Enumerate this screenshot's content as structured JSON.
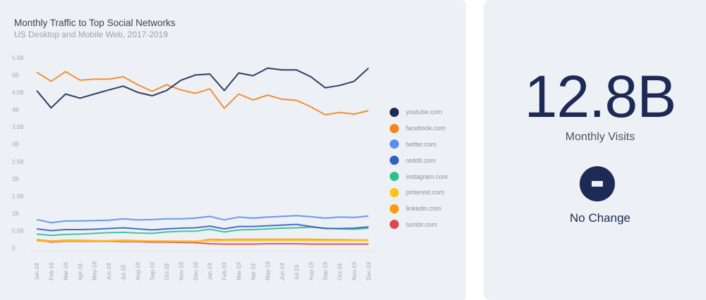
{
  "chart_data": {
    "type": "line",
    "title": "Monthly Traffic to Top Social Networks",
    "subtitle": "US Desktop and Mobile Web, 2017-2019",
    "xlabel": "",
    "ylabel": "",
    "ylim": [
      0,
      5.5
    ],
    "grid": false,
    "legend_position": "right",
    "y_ticks": [
      {
        "value": 0,
        "label": "0"
      },
      {
        "value": 0.5,
        "label": "0.5B"
      },
      {
        "value": 1,
        "label": "1B"
      },
      {
        "value": 1.5,
        "label": "1.5B"
      },
      {
        "value": 2,
        "label": "2B"
      },
      {
        "value": 2.5,
        "label": "2.5B"
      },
      {
        "value": 3,
        "label": "3B"
      },
      {
        "value": 3.5,
        "label": "3.5B"
      },
      {
        "value": 4,
        "label": "4B"
      },
      {
        "value": 4.5,
        "label": "4.5B"
      },
      {
        "value": 5,
        "label": "5B"
      },
      {
        "value": 5.5,
        "label": "5.5B"
      }
    ],
    "categories": [
      "Jan-18",
      "Feb-18",
      "Mar-18",
      "Apr-18",
      "May-18",
      "Jun-18",
      "Jul-18",
      "Aug-18",
      "Sep-18",
      "Oct-18",
      "Nov-18",
      "Dec-18",
      "Jan-19",
      "Feb-19",
      "Mar-19",
      "Apr-19",
      "May-19",
      "Jun-19",
      "Jul-19",
      "Aug-19",
      "Sep-19",
      "Oct-19",
      "Nov-19",
      "Dec-19"
    ],
    "series": [
      {
        "name": "youtube.com",
        "color": "#1c2a55",
        "values": [
          4.55,
          4.05,
          4.45,
          4.33,
          4.45,
          4.57,
          4.68,
          4.5,
          4.4,
          4.55,
          4.85,
          5.0,
          5.03,
          4.55,
          5.06,
          4.98,
          5.2,
          5.15,
          5.15,
          4.95,
          4.63,
          4.7,
          4.82,
          5.2
        ]
      },
      {
        "name": "facebook.com",
        "color": "#f5841f",
        "values": [
          5.08,
          4.82,
          5.1,
          4.85,
          4.88,
          4.88,
          4.95,
          4.72,
          4.53,
          4.72,
          4.57,
          4.47,
          4.6,
          4.04,
          4.45,
          4.28,
          4.42,
          4.3,
          4.27,
          4.08,
          3.85,
          3.92,
          3.87,
          3.97
        ]
      },
      {
        "name": "twitter.com",
        "color": "#5b8def",
        "values": [
          0.82,
          0.73,
          0.78,
          0.78,
          0.79,
          0.8,
          0.84,
          0.81,
          0.82,
          0.84,
          0.84,
          0.86,
          0.91,
          0.81,
          0.89,
          0.86,
          0.89,
          0.91,
          0.93,
          0.9,
          0.86,
          0.89,
          0.88,
          0.92
        ]
      },
      {
        "name": "reddit.com",
        "color": "#3260c0",
        "values": [
          0.55,
          0.5,
          0.53,
          0.53,
          0.54,
          0.56,
          0.58,
          0.55,
          0.52,
          0.55,
          0.57,
          0.58,
          0.63,
          0.55,
          0.62,
          0.62,
          0.64,
          0.66,
          0.68,
          0.62,
          0.56,
          0.56,
          0.57,
          0.61
        ]
      },
      {
        "name": "instagram.com",
        "color": "#2fbf8f",
        "values": [
          0.4,
          0.36,
          0.39,
          0.4,
          0.42,
          0.44,
          0.45,
          0.43,
          0.42,
          0.46,
          0.48,
          0.48,
          0.54,
          0.46,
          0.52,
          0.53,
          0.55,
          0.57,
          0.58,
          0.6,
          0.57,
          0.55,
          0.54,
          0.57
        ]
      },
      {
        "name": "pinterest.com",
        "color": "#fcc419",
        "values": [
          0.2,
          0.19,
          0.2,
          0.2,
          0.2,
          0.2,
          0.2,
          0.2,
          0.2,
          0.2,
          0.2,
          0.2,
          0.2,
          0.21,
          0.21,
          0.21,
          0.21,
          0.21,
          0.21,
          0.21,
          0.21,
          0.21,
          0.21,
          0.21
        ]
      },
      {
        "name": "linkedin.com",
        "color": "#fd9a12",
        "values": [
          0.24,
          0.2,
          0.22,
          0.22,
          0.21,
          0.21,
          0.22,
          0.21,
          0.2,
          0.2,
          0.19,
          0.18,
          0.25,
          0.24,
          0.25,
          0.25,
          0.25,
          0.25,
          0.25,
          0.25,
          0.24,
          0.24,
          0.23,
          0.23
        ]
      },
      {
        "name": "tumblr.com",
        "color": "#e0474c",
        "values": [
          0.22,
          0.17,
          0.19,
          0.19,
          0.19,
          0.19,
          0.18,
          0.18,
          0.17,
          0.17,
          0.16,
          0.15,
          0.12,
          0.11,
          0.11,
          0.11,
          0.12,
          0.12,
          0.12,
          0.11,
          0.11,
          0.11,
          0.11,
          0.11
        ]
      }
    ]
  },
  "kpi": {
    "value": "12.8B",
    "label": "Monthly Visits",
    "status_icon": "minus-circle-icon",
    "status_label": "No Change"
  }
}
